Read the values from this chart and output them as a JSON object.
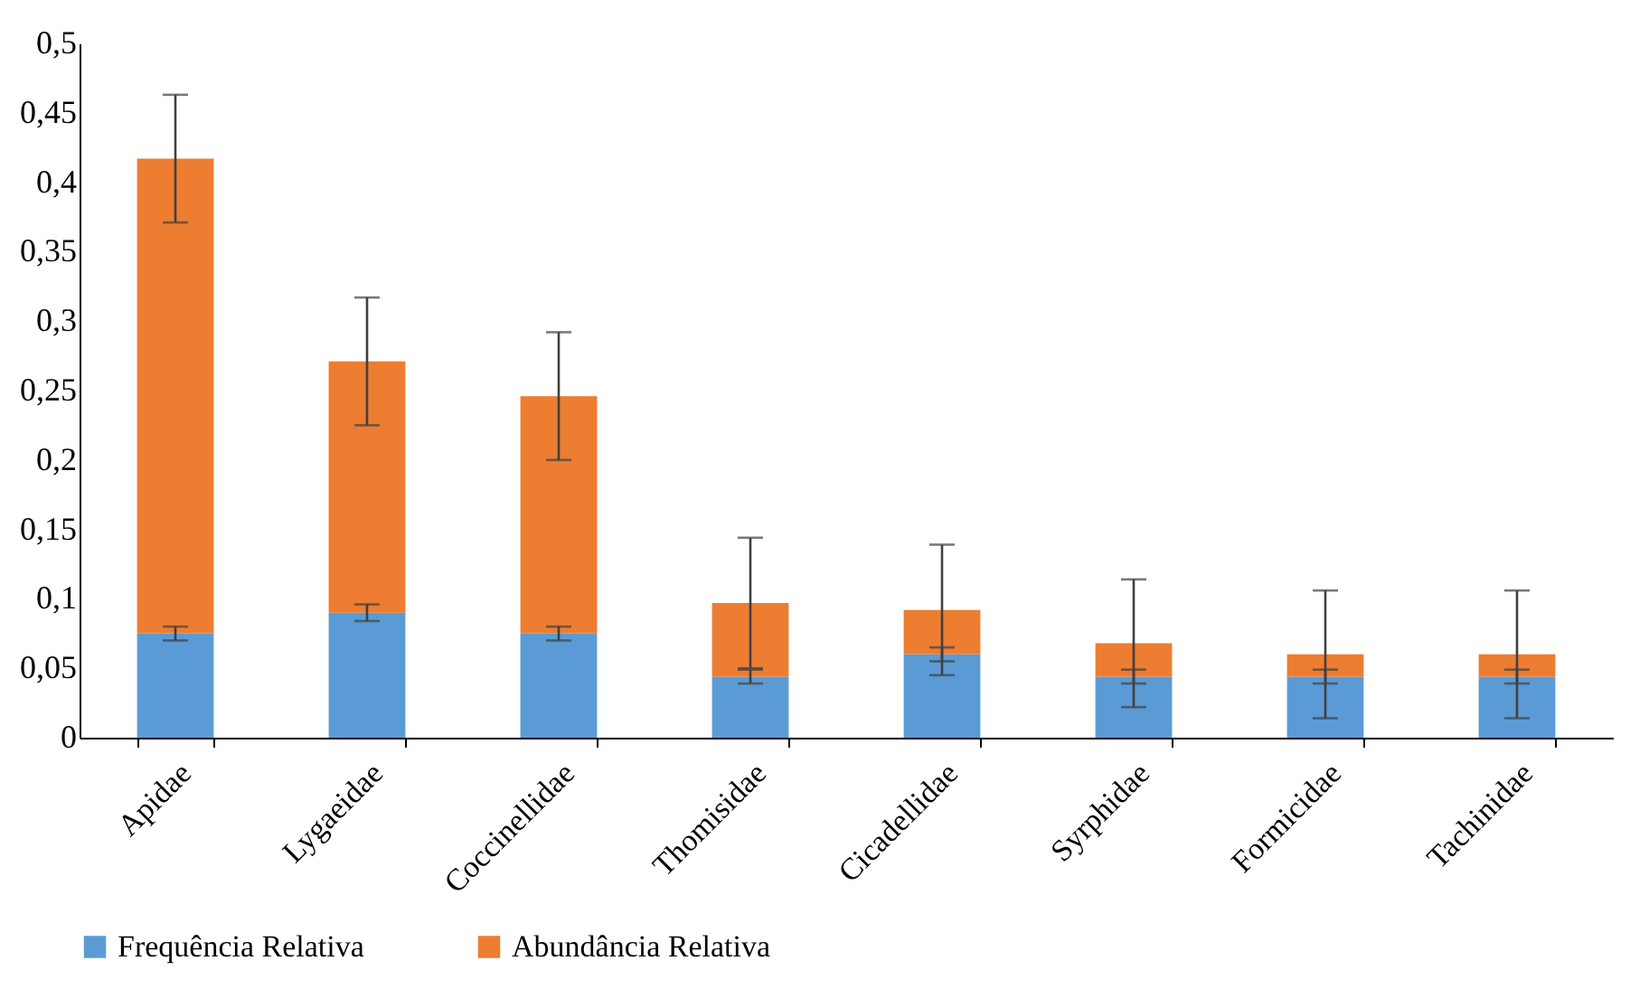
{
  "chart_data": {
    "type": "bar",
    "stacked": true,
    "categories": [
      "Apidae",
      "Lygaeidae",
      "Coccinellidae",
      "Thomisidae",
      "Cicadellidae",
      "Syrphidae",
      "Formicidae",
      "Tachinidae"
    ],
    "series": [
      {
        "name": "Frequência Relativa",
        "color": "#5b9bd5",
        "values": [
          0.075,
          0.09,
          0.075,
          0.044,
          0.06,
          0.044,
          0.044,
          0.044
        ],
        "errors": [
          0.005,
          0.006,
          0.005,
          0.005,
          0.005,
          0.005,
          0.005,
          0.005
        ]
      },
      {
        "name": "Abundância Relativa",
        "color": "#ed7d31",
        "values": [
          0.342,
          0.181,
          0.171,
          0.053,
          0.032,
          0.024,
          0.016,
          0.016
        ],
        "errors": [
          0.046,
          0.046,
          0.046,
          0.047,
          0.047,
          0.046,
          0.046,
          0.046
        ]
      }
    ],
    "ylim": [
      0,
      0.5
    ],
    "yticks": [
      0,
      {
        "value": 0.05,
        "label": "0,05"
      },
      {
        "value": 0.1,
        "label": "0,1"
      },
      {
        "value": 0.15,
        "label": "0,15"
      },
      {
        "value": 0.2,
        "label": "0,2"
      },
      {
        "value": 0.25,
        "label": "0,25"
      },
      {
        "value": 0.3,
        "label": "0,3"
      },
      {
        "value": 0.35,
        "label": "0,35"
      },
      {
        "value": 0.4,
        "label": "0,4"
      },
      {
        "value": 0.45,
        "label": "0,45"
      },
      {
        "value": 0.5,
        "label": "0,5"
      }
    ],
    "grid": false,
    "legend": "bottom"
  }
}
